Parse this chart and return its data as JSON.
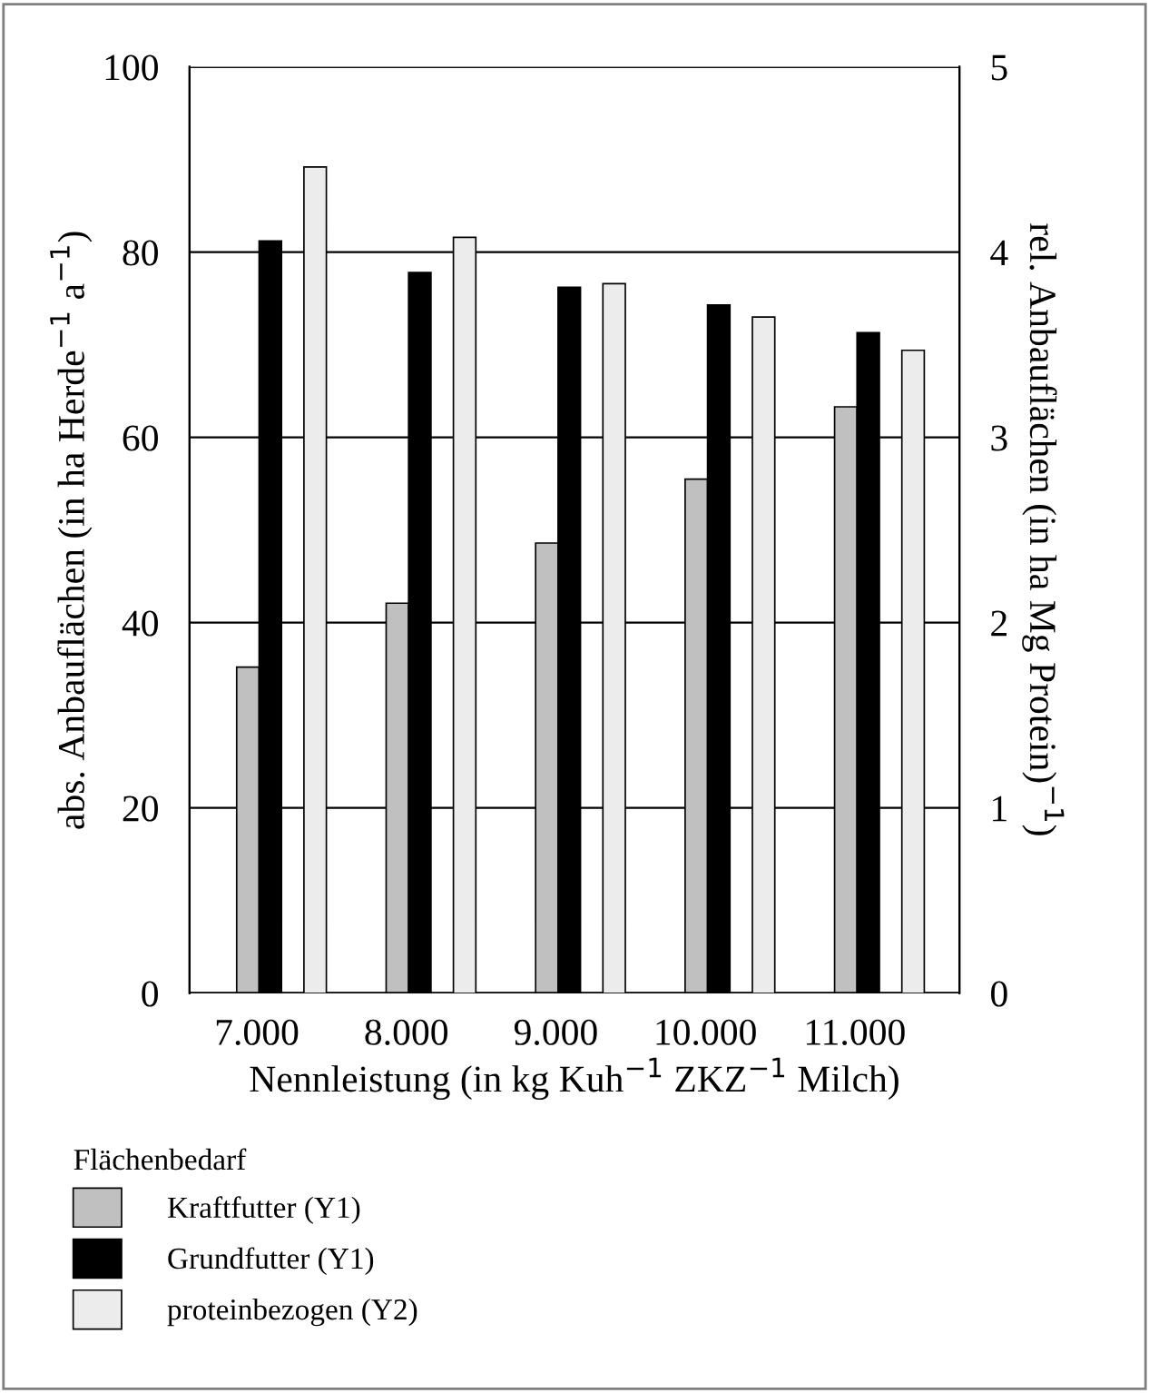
{
  "chart_data": {
    "type": "bar",
    "categories": [
      "7.000",
      "8.000",
      "9.000",
      "10.000",
      "11.000"
    ],
    "xlabel": "Nennleistung (in kg Kuh$^{−1}$ ZKZ$^{−1}$ Milch)",
    "ylabel": "abs. Anbauflächen (in ha Herde$^{−1}$ a$^{−1}$)",
    "y2label": "rel. Anbauflächen (in ha Mg Protein)$^{−1}$)",
    "legend_title": "Flächenbedarf",
    "legend": "bottom",
    "grid": "y",
    "ylim": [
      0,
      100
    ],
    "yticks": [
      0,
      20,
      40,
      60,
      80,
      100
    ],
    "y2lim": [
      0,
      5
    ],
    "y2ticks": [
      0,
      1,
      2,
      3,
      4,
      5
    ],
    "series": [
      {
        "name": "Kraftfutter (Y1)",
        "color": "#c0c0c0",
        "values": [
          35.2,
          42.1,
          48.6,
          55.5,
          63.3
        ]
      },
      {
        "name": "Grundfutter (Y1)",
        "color": "#000000",
        "values": [
          81.2,
          77.8,
          76.2,
          74.3,
          71.3
        ]
      },
      {
        "name": "proteinbezogen (Y2)",
        "color": "#ececec",
        "axis": "y2",
        "values": [
          4.46,
          4.08,
          3.83,
          3.65,
          3.47
        ]
      }
    ]
  }
}
